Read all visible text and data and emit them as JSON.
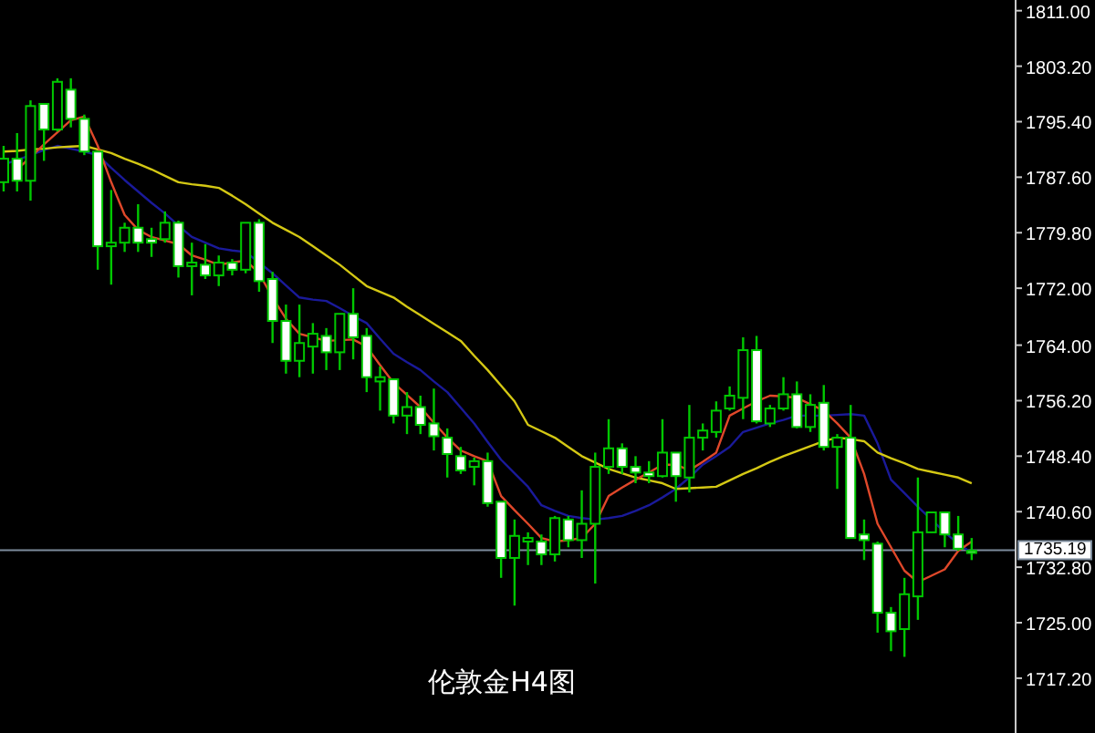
{
  "chart_data": {
    "type": "candlestick",
    "title": "伦敦金H4图",
    "categories": [
      null,
      null,
      null,
      null,
      null,
      null,
      null,
      null,
      null,
      null,
      null,
      null,
      null,
      null,
      null,
      null,
      null,
      null,
      null,
      null,
      null,
      null,
      null,
      null,
      null,
      null,
      null,
      null,
      null,
      null,
      null,
      null,
      null,
      null,
      null,
      null,
      null,
      null,
      null,
      null,
      null,
      null,
      null,
      null,
      null,
      null,
      null,
      null,
      null,
      null,
      null,
      null,
      null,
      null,
      null,
      null,
      null,
      null,
      null,
      null,
      null,
      null,
      null,
      null,
      null,
      null,
      null,
      null,
      null,
      null,
      null,
      null,
      null
    ],
    "ohlc": [
      [
        1786.9,
        1792.0,
        1785.6,
        1790.2
      ],
      [
        1790.2,
        1793.8,
        1785.6,
        1787.1
      ],
      [
        1787.1,
        1798.4,
        1784.3,
        1797.6
      ],
      [
        1797.9,
        1797.9,
        1789.9,
        1794.3
      ],
      [
        1794.3,
        1801.5,
        1794.0,
        1801.0
      ],
      [
        1799.9,
        1801.5,
        1794.6,
        1795.8
      ],
      [
        1795.8,
        1796.4,
        1790.7,
        1791.2
      ],
      [
        1791.2,
        1791.2,
        1774.6,
        1777.9
      ],
      [
        1777.9,
        1785.8,
        1772.5,
        1778.4
      ],
      [
        1778.4,
        1781.2,
        1777.1,
        1780.5
      ],
      [
        1780.5,
        1783.8,
        1777.1,
        1778.4
      ],
      [
        1778.9,
        1780.5,
        1776.4,
        1778.4
      ],
      [
        1778.9,
        1782.8,
        1778.4,
        1781.2
      ],
      [
        1781.2,
        1781.5,
        1773.5,
        1775.1
      ],
      [
        1775.1,
        1778.4,
        1771.0,
        1775.6
      ],
      [
        1775.3,
        1778.2,
        1773.3,
        1773.8
      ],
      [
        1773.8,
        1776.6,
        1772.3,
        1775.6
      ],
      [
        1775.6,
        1776.1,
        1773.8,
        1774.6
      ],
      [
        1774.6,
        1781.2,
        1774.1,
        1781.2
      ],
      [
        1781.2,
        1781.7,
        1771.5,
        1773.0
      ],
      [
        1773.3,
        1774.3,
        1764.3,
        1767.4
      ],
      [
        1767.4,
        1769.7,
        1760.0,
        1761.8
      ],
      [
        1761.8,
        1769.7,
        1759.5,
        1764.3
      ],
      [
        1763.8,
        1767.1,
        1760.0,
        1765.6
      ],
      [
        1765.3,
        1766.4,
        1760.5,
        1763.0
      ],
      [
        1763.0,
        1768.4,
        1760.5,
        1768.4
      ],
      [
        1768.4,
        1772.0,
        1762.0,
        1765.1
      ],
      [
        1765.3,
        1766.4,
        1757.4,
        1759.5
      ],
      [
        1758.9,
        1761.0,
        1754.8,
        1759.5
      ],
      [
        1759.2,
        1759.2,
        1753.0,
        1754.1
      ],
      [
        1754.1,
        1757.4,
        1751.5,
        1755.3
      ],
      [
        1755.3,
        1756.9,
        1751.5,
        1752.8
      ],
      [
        1753.0,
        1757.9,
        1749.2,
        1751.2
      ],
      [
        1751.0,
        1752.3,
        1745.4,
        1748.7
      ],
      [
        1748.4,
        1749.7,
        1745.9,
        1746.4
      ],
      [
        1746.9,
        1748.2,
        1744.3,
        1747.7
      ],
      [
        1747.7,
        1748.9,
        1741.3,
        1741.8
      ],
      [
        1742.0,
        1742.0,
        1731.3,
        1734.1
      ],
      [
        1734.1,
        1739.5,
        1727.4,
        1737.2
      ],
      [
        1736.4,
        1737.7,
        1733.1,
        1736.9
      ],
      [
        1736.4,
        1737.4,
        1733.1,
        1734.6
      ],
      [
        1734.6,
        1740.0,
        1733.6,
        1739.7
      ],
      [
        1739.5,
        1740.0,
        1735.6,
        1736.6
      ],
      [
        1736.6,
        1743.6,
        1734.1,
        1738.9
      ],
      [
        1738.9,
        1748.9,
        1730.5,
        1746.9
      ],
      [
        1746.9,
        1753.6,
        1745.9,
        1749.5
      ],
      [
        1749.5,
        1750.2,
        1745.9,
        1746.9
      ],
      [
        1746.9,
        1748.4,
        1744.6,
        1746.1
      ],
      [
        1746.1,
        1747.7,
        1744.6,
        1745.6
      ],
      [
        1745.6,
        1753.6,
        1745.4,
        1748.9
      ],
      [
        1748.9,
        1748.9,
        1742.0,
        1745.6
      ],
      [
        1745.4,
        1755.6,
        1743.3,
        1751.0
      ],
      [
        1751.0,
        1753.0,
        1749.2,
        1752.0
      ],
      [
        1751.8,
        1756.1,
        1751.0,
        1754.8
      ],
      [
        1755.1,
        1758.2,
        1754.8,
        1756.9
      ],
      [
        1756.6,
        1765.1,
        1753.6,
        1763.3
      ],
      [
        1763.3,
        1765.3,
        1753.0,
        1753.3
      ],
      [
        1753.0,
        1755.6,
        1752.5,
        1755.1
      ],
      [
        1755.1,
        1759.5,
        1754.8,
        1757.1
      ],
      [
        1757.1,
        1758.9,
        1752.3,
        1752.5
      ],
      [
        1752.5,
        1757.1,
        1751.8,
        1755.6
      ],
      [
        1755.9,
        1758.4,
        1749.2,
        1749.7
      ],
      [
        1749.7,
        1751.5,
        1743.8,
        1751.0
      ],
      [
        1751.0,
        1755.6,
        1736.9,
        1736.9
      ],
      [
        1737.4,
        1739.5,
        1733.8,
        1736.6
      ],
      [
        1736.1,
        1736.4,
        1723.6,
        1726.4
      ],
      [
        1726.4,
        1727.2,
        1721.0,
        1723.8
      ],
      [
        1724.1,
        1731.3,
        1720.2,
        1729.0
      ],
      [
        1728.7,
        1745.4,
        1725.4,
        1737.7
      ],
      [
        1737.7,
        1740.5,
        1737.7,
        1740.5
      ],
      [
        1740.5,
        1740.5,
        1735.6,
        1737.4
      ],
      [
        1737.4,
        1740.0,
        1735.1,
        1735.4
      ],
      [
        1735.1,
        1736.9,
        1733.8,
        1734.8
      ]
    ],
    "series": [
      {
        "type": "line",
        "color": "#1a1a9a",
        "values": [
          1789.4,
          1790.0,
          1790.7,
          1791.4,
          1792.0,
          1791.6,
          1791.2,
          1790.7,
          1788.9,
          1787.2,
          1785.6,
          1784.0,
          1782.5,
          1780.8,
          1779.2,
          1778.4,
          1777.6,
          1777.3,
          1777.1,
          1775.6,
          1774.1,
          1772.4,
          1770.7,
          1770.4,
          1770.2,
          1769.2,
          1768.1,
          1767.1,
          1764.9,
          1762.8,
          1761.6,
          1760.5,
          1758.9,
          1757.4,
          1755.2,
          1753.0,
          1750.4,
          1747.9,
          1746.0,
          1744.1,
          1741.5,
          1740.7,
          1740.0,
          1739.7,
          1739.5,
          1739.7,
          1740.0,
          1740.7,
          1741.5,
          1742.6,
          1743.8,
          1745.4,
          1747.2,
          1748.4,
          1749.7,
          1751.8,
          1752.4,
          1753.0,
          1753.5,
          1754.1,
          1754.1,
          1754.1,
          1754.2,
          1754.3,
          1754.1,
          1750.2,
          1745.1,
          1743.2,
          1741.3,
          1739.5,
          1737.7,
          1736.1,
          1734.8
        ]
      },
      {
        "type": "line",
        "color": "#d4c814",
        "values": [
          1791.2,
          1791.3,
          1791.5,
          1791.6,
          1791.8,
          1791.9,
          1792.0,
          1791.5,
          1791.0,
          1790.2,
          1789.5,
          1788.7,
          1787.8,
          1786.9,
          1786.6,
          1786.4,
          1786.1,
          1785.0,
          1783.8,
          1782.5,
          1781.2,
          1780.2,
          1779.2,
          1777.9,
          1776.6,
          1775.3,
          1773.8,
          1772.3,
          1771.5,
          1770.7,
          1769.4,
          1768.2,
          1767.0,
          1765.8,
          1764.6,
          1762.5,
          1760.5,
          1758.3,
          1756.1,
          1752.8,
          1751.9,
          1751.0,
          1749.7,
          1748.4,
          1747.5,
          1746.6,
          1746.0,
          1745.4,
          1745.0,
          1744.6,
          1743.8,
          1743.9,
          1744.0,
          1744.1,
          1745.0,
          1745.9,
          1746.7,
          1747.6,
          1748.4,
          1749.1,
          1749.8,
          1750.5,
          1751.0,
          1750.8,
          1750.5,
          1748.9,
          1748.1,
          1747.4,
          1746.6,
          1746.2,
          1745.8,
          1745.4,
          1744.6
        ]
      },
      {
        "type": "line",
        "color": "#e0482a",
        "values": [
          null,
          1788.7,
          1790.4,
          1792.2,
          1793.9,
          1795.6,
          1796.1,
          1792.0,
          1786.9,
          1782.3,
          1780.2,
          1779.2,
          1778.7,
          1778.2,
          1776.6,
          1776.0,
          1775.3,
          1775.6,
          1775.9,
          1774.1,
          1770.7,
          1767.7,
          1765.6,
          1765.1,
          1764.6,
          1764.7,
          1764.8,
          1763.8,
          1761.2,
          1758.7,
          1757.0,
          1755.3,
          1753.1,
          1751.0,
          1749.2,
          1748.4,
          1747.7,
          1742.8,
          1740.8,
          1738.9,
          1736.9,
          1736.4,
          1736.6,
          1736.9,
          1738.9,
          1742.8,
          1744.0,
          1745.1,
          1746.1,
          1747.2,
          1747.2,
          1746.4,
          1747.6,
          1748.9,
          1754.1,
          1755.1,
          1756.1,
          1756.9,
          1756.8,
          1756.6,
          1755.7,
          1754.8,
          1753.0,
          1751.0,
          1745.9,
          1738.9,
          1735.6,
          1732.3,
          1730.7,
          1731.6,
          1732.5,
          1735.1,
          1736.4
        ]
      }
    ],
    "ylim": [
      1709.5,
      1812.5
    ],
    "yticks": [
      {
        "value": 1811,
        "label": "1811.00"
      },
      {
        "value": 1803.2,
        "label": "1803.20"
      },
      {
        "value": 1795.4,
        "label": "1795.40"
      },
      {
        "value": 1787.6,
        "label": "1787.60"
      },
      {
        "value": 1779.8,
        "label": "1779.80"
      },
      {
        "value": 1772,
        "label": "1772.00"
      },
      {
        "value": 1764,
        "label": "1764.00"
      },
      {
        "value": 1756.2,
        "label": "1756.20"
      },
      {
        "value": 1748.4,
        "label": "1748.40"
      },
      {
        "value": 1740.6,
        "label": "1740.60"
      },
      {
        "value": 1732.8,
        "label": "1732.80"
      },
      {
        "value": 1725,
        "label": "1725.00"
      },
      {
        "value": 1717.2,
        "label": "1717.20"
      }
    ],
    "ref_lines": [
      {
        "axis": "y",
        "value": 1735.19,
        "label": "1735.19",
        "color": "#7d8c9c"
      }
    ],
    "tick_labels": "y"
  }
}
